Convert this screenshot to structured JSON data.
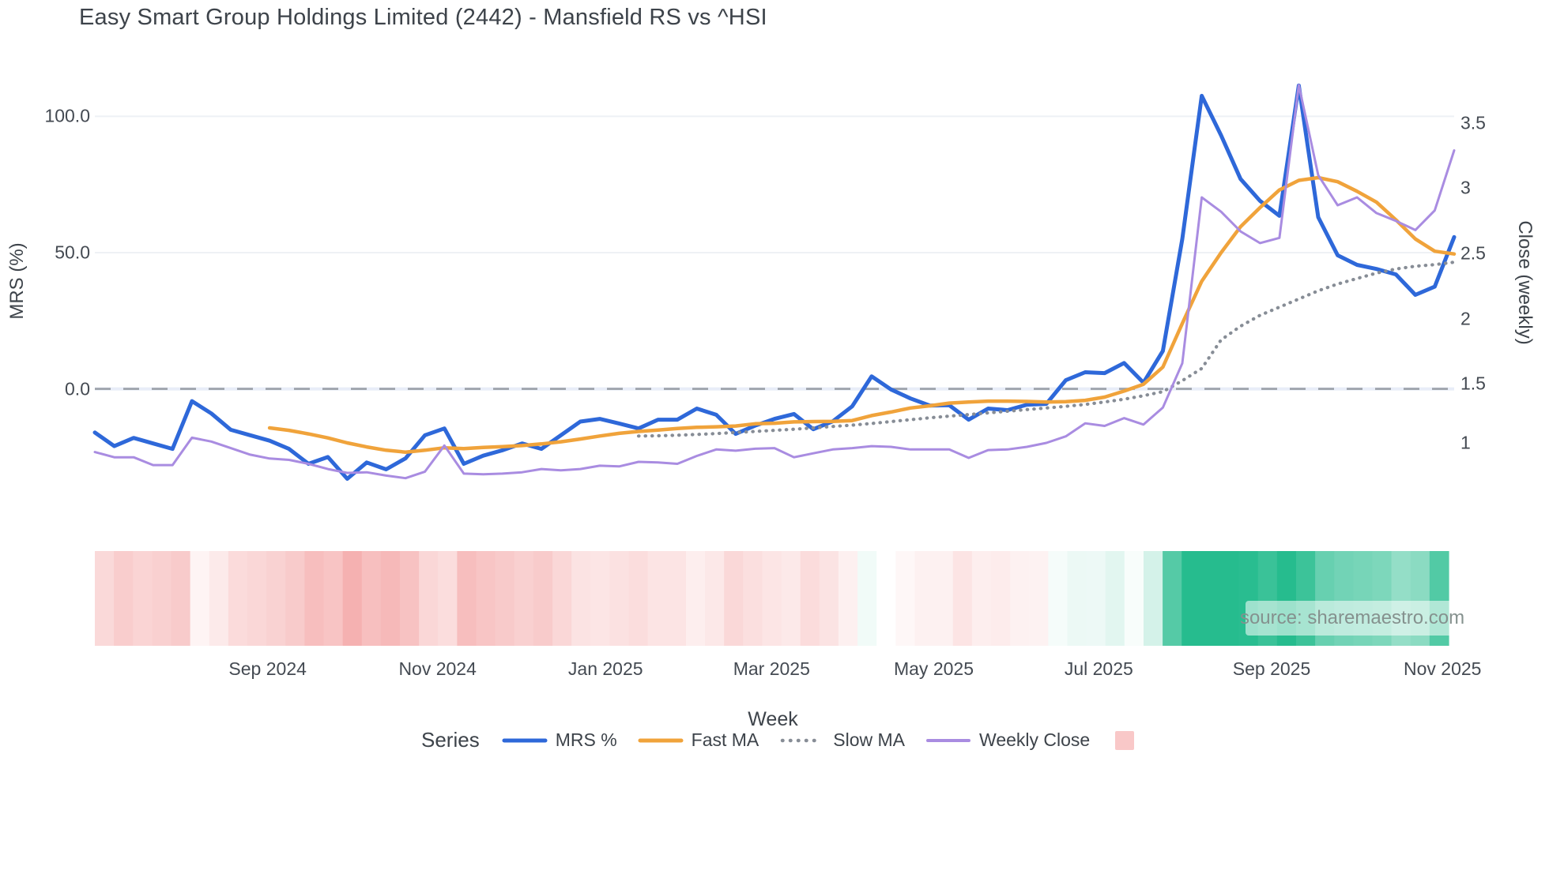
{
  "title": "Easy Smart Group Holdings Limited (2442) - Mansfield RS vs ^HSI",
  "source_note": "source: sharemaestro.com",
  "axes": {
    "y_left": {
      "title": "MRS (%)",
      "tick_labels": [
        "100.0",
        "50.0",
        "0.0"
      ],
      "tick_values": [
        100,
        50,
        0
      ]
    },
    "y_right": {
      "title": "Close (weekly)",
      "tick_labels": [
        "3.5",
        "3",
        "2.5",
        "2",
        "1.5",
        "1"
      ],
      "tick_values": [
        3.5,
        3,
        2.5,
        2,
        1.5,
        1
      ]
    },
    "x": {
      "title": "Week",
      "tick_labels": [
        "Sep 2024",
        "Nov 2024",
        "Jan 2025",
        "Mar 2025",
        "May 2025",
        "Jul 2025",
        "Sep 2025",
        "Nov 2025"
      ],
      "tick_week_positions": [
        8.9,
        17.65,
        26.3,
        34.85,
        43.2,
        51.7,
        60.6,
        69.4
      ]
    }
  },
  "legend": {
    "title": "Series",
    "heatmap_swatch_color": "#f9c8c8"
  },
  "colors": {
    "mrs": "#2e68d9",
    "fast_ma": "#f0a33b",
    "slow_ma": "#878d96",
    "weekly_close": "#a98ce1",
    "zeroline_dash": "#9aa0a8",
    "zeroline_under": "#e8edf8",
    "gridline": "#eef1f5",
    "heat_pos_full": "#26bc8e",
    "heat_neg_full": "#f3a0a0"
  },
  "chart_data": {
    "type": "line",
    "title": "Easy Smart Group Holdings Limited (2442) - Mansfield RS vs ^HSI",
    "xlabel": "Week",
    "ylabel_left": "MRS (%)",
    "ylabel_right": "Close (weekly)",
    "x_unit": "week_index",
    "n_weeks": 71,
    "x_span_label": "Jul 2024 - Nov 2025, weekly",
    "zeroline_left_axis": 0,
    "legend_position": "bottom",
    "grid": "horizontal-faint",
    "series": [
      {
        "name": "MRS %",
        "axis": "left",
        "style": "solid",
        "width": 5,
        "color": "#2e68d9",
        "values": [
          -16,
          -21,
          -18,
          -20,
          -22,
          -4.5,
          -9,
          -15,
          -17,
          -19,
          -22,
          -27.5,
          -25,
          -33,
          -27,
          -29.5,
          -25.5,
          -17,
          -14.5,
          -27.5,
          -24.5,
          -22.5,
          -20,
          -22,
          -17,
          -12,
          -11,
          -12.7,
          -14.5,
          -11.3,
          -11.3,
          -7.2,
          -9.5,
          -16.5,
          -13.5,
          -11,
          -9.2,
          -14.8,
          -11.9,
          -6.4,
          4.6,
          -0.2,
          -3.5,
          -6.1,
          -6,
          -11.3,
          -7.2,
          -7.8,
          -5.8,
          -5.5,
          3.2,
          6.1,
          5.8,
          9.5,
          2.3,
          13.9,
          55,
          107.5,
          93,
          77,
          69,
          63.5,
          111.3,
          63,
          49,
          45.5,
          44,
          42,
          34.5,
          37.5,
          55.7
        ]
      },
      {
        "name": "Fast MA",
        "axis": "left",
        "style": "solid",
        "width": 4.5,
        "color": "#f0a33b",
        "values": [
          null,
          null,
          null,
          null,
          null,
          null,
          null,
          null,
          null,
          -14.3,
          -15.2,
          -16.5,
          -18,
          -19.8,
          -21.3,
          -22.5,
          -23.2,
          -22.5,
          -21.6,
          -21.9,
          -21.5,
          -21.2,
          -20.8,
          -20.2,
          -19.4,
          -18.4,
          -17.3,
          -16.3,
          -15.6,
          -15.1,
          -14.5,
          -14.1,
          -13.9,
          -13.6,
          -12.8,
          -12.6,
          -12.1,
          -12,
          -11.9,
          -11.6,
          -9.8,
          -8.5,
          -7,
          -6.2,
          -5.2,
          -4.8,
          -4.5,
          -4.5,
          -4.6,
          -4.8,
          -4.7,
          -4.2,
          -3,
          -0.8,
          1.7,
          8,
          24,
          39.5,
          50,
          59.5,
          66.5,
          73,
          76.5,
          77.5,
          76,
          72.5,
          68.5,
          62,
          55,
          50.5,
          49.5
        ]
      },
      {
        "name": "Slow MA",
        "axis": "left",
        "style": "dotted",
        "width": 3.5,
        "color": "#878d96",
        "values": [
          null,
          null,
          null,
          null,
          null,
          null,
          null,
          null,
          null,
          null,
          null,
          null,
          null,
          null,
          null,
          null,
          null,
          null,
          null,
          null,
          null,
          null,
          null,
          null,
          null,
          null,
          null,
          null,
          -17.3,
          -17.2,
          -17,
          -16.7,
          -16.4,
          -16,
          -15.6,
          -15.2,
          -14.8,
          -14.3,
          -13.8,
          -13.3,
          -12.7,
          -12,
          -11.3,
          -10.6,
          -10,
          -9.4,
          -8.8,
          -8.2,
          -7.6,
          -7,
          -6.4,
          -5.7,
          -4.8,
          -3.8,
          -2.5,
          -1,
          3,
          7.5,
          18,
          23,
          27,
          30,
          33,
          36,
          38.5,
          40.5,
          42.5,
          44,
          45,
          45.6,
          46.5
        ]
      },
      {
        "name": "Weekly Close",
        "axis": "right",
        "style": "solid",
        "width": 3,
        "color": "#a98ce1",
        "values": [
          0.93,
          0.89,
          0.89,
          0.83,
          0.83,
          1.04,
          1.01,
          0.96,
          0.91,
          0.88,
          0.87,
          0.84,
          0.8,
          0.77,
          0.775,
          0.75,
          0.73,
          0.78,
          0.98,
          0.765,
          0.76,
          0.765,
          0.775,
          0.8,
          0.79,
          0.8,
          0.825,
          0.82,
          0.855,
          0.85,
          0.84,
          0.9,
          0.95,
          0.94,
          0.955,
          0.96,
          0.89,
          0.92,
          0.95,
          0.96,
          0.975,
          0.97,
          0.95,
          0.95,
          0.95,
          0.885,
          0.945,
          0.95,
          0.97,
          1,
          1.05,
          1.15,
          1.13,
          1.19,
          1.14,
          1.27,
          1.61,
          2.88,
          2.77,
          2.62,
          2.53,
          2.57,
          3.74,
          3.05,
          2.82,
          2.88,
          2.76,
          2.7,
          2.63,
          2.78,
          3.24
        ]
      }
    ],
    "heatmap_strip": {
      "source_series": "MRS %",
      "negative_full_at": -40,
      "positive_full_at": 70,
      "negative_color": "#f3a0a0",
      "positive_color": "#26bc8e"
    },
    "y_left_ticks": [
      100,
      50,
      0
    ],
    "y_right_ticks": [
      3.5,
      3,
      2.5,
      2,
      1.5,
      1
    ]
  }
}
